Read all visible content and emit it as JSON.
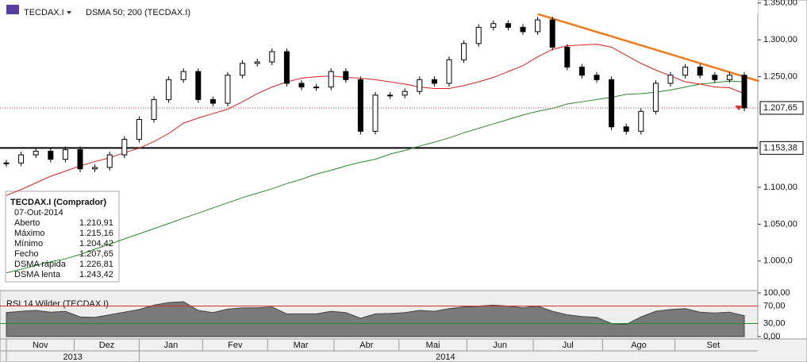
{
  "toolbar": {
    "symbol": "TECDAX.I",
    "indicator": "DSMA 50; 200 (TECDAX.I)"
  },
  "chart_data": {
    "type": "candlestick",
    "close": [
      1133,
      1144,
      1149,
      1138,
      1151,
      1125,
      1127,
      1144,
      1165,
      1192,
      1219,
      1246,
      1257,
      1219,
      1214,
      1252,
      1268,
      1270,
      1284,
      1241,
      1236,
      1236,
      1257,
      1246,
      1176,
      1225,
      1225,
      1230,
      1246,
      1241,
      1273,
      1295,
      1317,
      1322,
      1317,
      1311,
      1327,
      1290,
      1263,
      1252,
      1246,
      1182,
      1176,
      1203,
      1241,
      1252,
      1263,
      1252,
      1246,
      1252,
      1207.65
    ],
    "sma_fast": {
      "name": "DSMA rápida",
      "color": "#e02020",
      "values": [
        1089,
        1097,
        1106,
        1115,
        1122,
        1129,
        1135,
        1140,
        1147,
        1153,
        1162,
        1173,
        1187,
        1194,
        1200,
        1206,
        1216,
        1227,
        1236,
        1243,
        1248,
        1250,
        1251,
        1249,
        1248,
        1246,
        1243,
        1240,
        1236,
        1234,
        1234,
        1238,
        1243,
        1249,
        1257,
        1265,
        1277,
        1287,
        1292,
        1293,
        1294,
        1290,
        1279,
        1268,
        1259,
        1251,
        1243,
        1240,
        1236,
        1235,
        1227
      ]
    },
    "sma_slow": {
      "name": "DSMA lenta",
      "color": "#2a8a2a",
      "values": [
        984,
        989,
        994,
        999,
        1003,
        1009,
        1016,
        1023,
        1030,
        1037,
        1044,
        1051,
        1058,
        1065,
        1072,
        1079,
        1086,
        1092,
        1098,
        1105,
        1111,
        1118,
        1123,
        1129,
        1134,
        1138,
        1145,
        1150,
        1156,
        1161,
        1167,
        1174,
        1180,
        1186,
        1192,
        1198,
        1203,
        1207,
        1213,
        1216,
        1219,
        1222,
        1226,
        1227,
        1229,
        1232,
        1236,
        1240,
        1242,
        1244,
        1243
      ]
    },
    "ylim": [
      960,
      1354
    ],
    "yticks": [
      {
        "value": 1350,
        "label": "1.350,00"
      },
      {
        "value": 1300,
        "label": "1.300,00"
      },
      {
        "value": 1250,
        "label": "1.250,00"
      },
      {
        "value": 1100,
        "label": "1.100,00"
      },
      {
        "value": 1050,
        "label": "1.050,00"
      },
      {
        "value": 1000,
        "label": "1.000,0"
      }
    ],
    "last_price": {
      "value": 1207.65,
      "label": "1.207,65"
    },
    "support": {
      "value": 1153.38,
      "label": "1.153,38"
    },
    "trendline": {
      "weeks": [
        36,
        51
      ],
      "values": [
        1335,
        1244
      ],
      "color": "#f07a1a"
    },
    "months": [
      "Nov",
      "Dez",
      "Jan",
      "Fev",
      "Mar",
      "Abr",
      "Mai",
      "Jun",
      "Jul",
      "Ago",
      "Set"
    ],
    "month_starts": [
      0,
      4.6,
      9,
      13.3,
      17.7,
      22.2,
      26.6,
      31.2,
      35.7,
      40.4,
      45.3
    ],
    "years": [
      "2013",
      "2014"
    ],
    "year_starts": [
      0,
      9
    ],
    "rsi": {
      "title": "RSI 14 Wilder (TECDAX.I)",
      "values": [
        55,
        58,
        60,
        56,
        58,
        45,
        44,
        50,
        56,
        62,
        72,
        78,
        80,
        60,
        55,
        63,
        66,
        66,
        68,
        52,
        52,
        52,
        58,
        55,
        42,
        52,
        53,
        55,
        60,
        58,
        64,
        68,
        70,
        72,
        70,
        66,
        70,
        58,
        50,
        46,
        44,
        30,
        28,
        45,
        58,
        62,
        64,
        56,
        54,
        56,
        48
      ],
      "ylim": [
        0,
        100
      ],
      "yticks": [
        {
          "value": 100,
          "label": "100,00"
        },
        {
          "value": 70,
          "label": "70,00"
        },
        {
          "value": 30,
          "label": "30,00"
        },
        {
          "value": 0,
          "label": "0,00"
        }
      ]
    }
  },
  "info": {
    "title": "TECDAX.I (Comprador)",
    "date": "07-Out-2014",
    "rows": [
      {
        "name": "Aberto",
        "value": "1.210,91"
      },
      {
        "name": "Máximo",
        "value": "1.215,16"
      },
      {
        "name": "Mínimo",
        "value": "1.204,42"
      },
      {
        "name": "Fecho",
        "value": "1.207,65"
      },
      {
        "name": "DSMA rápida",
        "value": "1.226,81"
      },
      {
        "name": "DSMA lenta",
        "value": "1.243,42"
      }
    ]
  }
}
